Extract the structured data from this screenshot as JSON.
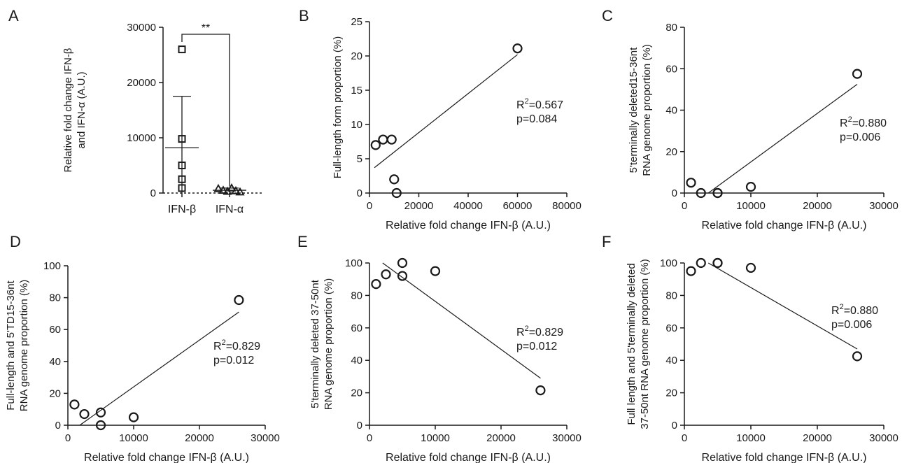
{
  "chart_data": [
    {
      "panel": "A",
      "type": "scatter",
      "categories": [
        "IFN-β",
        "IFN-α"
      ],
      "ylabel": "Relative fold change IFN-β and IFN-α (A.U.)",
      "ylim": [
        0,
        30000
      ],
      "yticks": [
        0,
        10000,
        20000,
        30000
      ],
      "significance": "**",
      "series": [
        {
          "name": "IFN-β",
          "marker": "square",
          "values": [
            26000,
            9800,
            5000,
            5000,
            2500,
            900
          ],
          "mean": 8200,
          "sd_upper": 17500,
          "sd_lower": 0
        },
        {
          "name": "IFN-α",
          "marker": "triangle",
          "values": [
            800,
            500,
            300,
            900,
            400,
            200
          ],
          "mean": 500,
          "sd_upper": 900,
          "sd_lower": 100
        }
      ]
    },
    {
      "panel": "B",
      "type": "scatter",
      "xlabel": "Relative fold change IFN-β (A.U.)",
      "ylabel": "Full-length form proportion (%)",
      "xlim": [
        0,
        80000
      ],
      "ylim": [
        0,
        25
      ],
      "xticks": [
        0,
        20000,
        40000,
        60000,
        80000
      ],
      "yticks": [
        0,
        5,
        10,
        15,
        20,
        25
      ],
      "points": [
        [
          2500,
          7
        ],
        [
          5500,
          7.8
        ],
        [
          9000,
          7.8
        ],
        [
          10000,
          2
        ],
        [
          11000,
          0
        ],
        [
          60000,
          21.1
        ]
      ],
      "fit": [
        [
          2000,
          3.7
        ],
        [
          60000,
          20.2
        ]
      ],
      "annotation": {
        "r2_prefix": "R",
        "r2_sup": "2",
        "r2_value": "=0.567",
        "p": "p=0.084"
      }
    },
    {
      "panel": "C",
      "type": "scatter",
      "xlabel": "Relative fold change IFN-β (A.U.)",
      "ylabel": "5'terminally deleted15-36nt RNA genome proportion (%)",
      "xlim": [
        0,
        30000
      ],
      "ylim": [
        0,
        80
      ],
      "xticks": [
        0,
        10000,
        20000,
        30000
      ],
      "yticks": [
        0,
        20,
        40,
        60,
        80
      ],
      "points": [
        [
          1000,
          5
        ],
        [
          2500,
          0
        ],
        [
          5000,
          0
        ],
        [
          5000,
          0
        ],
        [
          10000,
          3
        ],
        [
          26000,
          57.5
        ]
      ],
      "fit": [
        [
          3600,
          0
        ],
        [
          26000,
          52.5
        ]
      ],
      "annotation": {
        "r2_prefix": "R",
        "r2_sup": "2",
        "r2_value": "=0.880",
        "p": "p=0.006"
      }
    },
    {
      "panel": "D",
      "type": "scatter",
      "xlabel": "Relative fold change IFN-β (A.U.)",
      "ylabel": "Full-length and 5'TD15-36nt RNA genome proportion (%)",
      "xlim": [
        0,
        30000
      ],
      "ylim": [
        0,
        100
      ],
      "xticks": [
        0,
        10000,
        20000,
        30000
      ],
      "yticks": [
        0,
        20,
        40,
        60,
        80,
        100
      ],
      "points": [
        [
          1000,
          13
        ],
        [
          2500,
          7
        ],
        [
          5000,
          8
        ],
        [
          5000,
          0
        ],
        [
          10000,
          5
        ],
        [
          26000,
          78.5
        ]
      ],
      "fit": [
        [
          1800,
          0
        ],
        [
          26000,
          71
        ]
      ],
      "annotation": {
        "r2_prefix": "R",
        "r2_sup": "2",
        "r2_value": "=0.829",
        "p": "p=0.012"
      }
    },
    {
      "panel": "E",
      "type": "scatter",
      "xlabel": "Relative fold change IFN-β (A.U.)",
      "ylabel": "5'terminally deleted 37-50nt RNA genome proportion (%)",
      "xlim": [
        0,
        30000
      ],
      "ylim": [
        0,
        100
      ],
      "xticks": [
        0,
        10000,
        20000,
        30000
      ],
      "yticks": [
        0,
        20,
        40,
        60,
        80,
        100
      ],
      "points": [
        [
          1000,
          87
        ],
        [
          2500,
          93
        ],
        [
          5000,
          100
        ],
        [
          5000,
          92
        ],
        [
          10000,
          95
        ],
        [
          26000,
          21.5
        ]
      ],
      "fit": [
        [
          2000,
          100
        ],
        [
          26000,
          29
        ]
      ],
      "annotation": {
        "r2_prefix": "R",
        "r2_sup": "2",
        "r2_value": "=0.829",
        "p": "p=0.012"
      }
    },
    {
      "panel": "F",
      "type": "scatter",
      "xlabel": "Relative fold change IFN-β (A.U.)",
      "ylabel": "Full length and 5'terminally deleted 37-50nt RNA genome proportion (%)",
      "xlim": [
        0,
        30000
      ],
      "ylim": [
        0,
        100
      ],
      "xticks": [
        0,
        10000,
        20000,
        30000
      ],
      "yticks": [
        0,
        20,
        40,
        60,
        80,
        100
      ],
      "points": [
        [
          1000,
          95
        ],
        [
          2500,
          100
        ],
        [
          5000,
          100
        ],
        [
          5000,
          100
        ],
        [
          10000,
          97
        ],
        [
          26000,
          42.5
        ]
      ],
      "fit": [
        [
          3600,
          100
        ],
        [
          26000,
          47
        ]
      ],
      "annotation": {
        "r2_prefix": "R",
        "r2_sup": "2",
        "r2_value": "=0.880",
        "p": "p=0.006"
      }
    }
  ]
}
